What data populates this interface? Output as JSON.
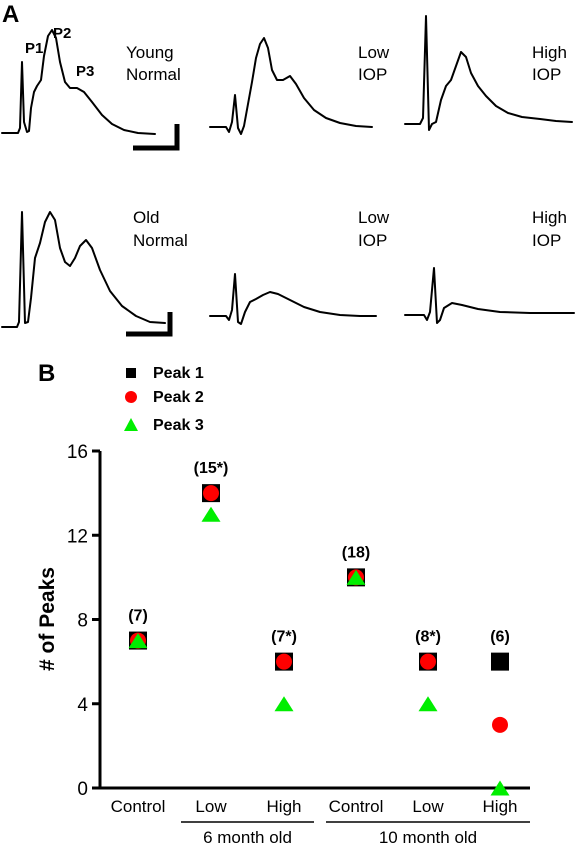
{
  "panel_a": {
    "letter": "A",
    "peak_labels": {
      "p1": "P1",
      "p2": "P2",
      "p3": "P3"
    },
    "traces": [
      {
        "row": 0,
        "col": 0,
        "label_lines": [
          "Young",
          "Normal"
        ]
      },
      {
        "row": 0,
        "col": 1,
        "label_lines": [
          "Low",
          "IOP"
        ]
      },
      {
        "row": 0,
        "col": 2,
        "label_lines": [
          "High",
          "IOP"
        ]
      },
      {
        "row": 1,
        "col": 0,
        "label_lines": [
          "Old",
          "Normal"
        ]
      },
      {
        "row": 1,
        "col": 1,
        "label_lines": [
          "Low",
          "IOP"
        ]
      },
      {
        "row": 1,
        "col": 2,
        "label_lines": [
          "High",
          "IOP"
        ]
      }
    ]
  },
  "panel_b": {
    "letter": "B"
  },
  "chart_data": {
    "type": "scatter",
    "ylabel": "# of Peaks",
    "ylim": [
      0,
      16
    ],
    "yticks": [
      0,
      4,
      8,
      12,
      16
    ],
    "categories": [
      "Control",
      "Low",
      "High",
      "Control",
      "Low",
      "High"
    ],
    "groups": [
      {
        "label": "6 month old",
        "categories": [
          1,
          2
        ]
      },
      {
        "label": "10 month old",
        "categories": [
          3,
          4,
          5
        ]
      }
    ],
    "n_labels": [
      "(7)",
      "(15*)",
      "(7*)",
      "(18)",
      "(8*)",
      "(6)"
    ],
    "series": [
      {
        "name": "Peak 1",
        "marker": "square",
        "color": "#000000",
        "values": [
          7,
          14,
          6,
          10,
          6,
          6
        ]
      },
      {
        "name": "Peak 2",
        "marker": "circle",
        "color": "#ff0000",
        "values": [
          7,
          14,
          6,
          10,
          6,
          3
        ]
      },
      {
        "name": "Peak 3",
        "marker": "triangle",
        "color": "#00ee00",
        "values": [
          7,
          13,
          4,
          10,
          4,
          0
        ]
      }
    ],
    "legend_position": "top-left",
    "grid": false
  }
}
